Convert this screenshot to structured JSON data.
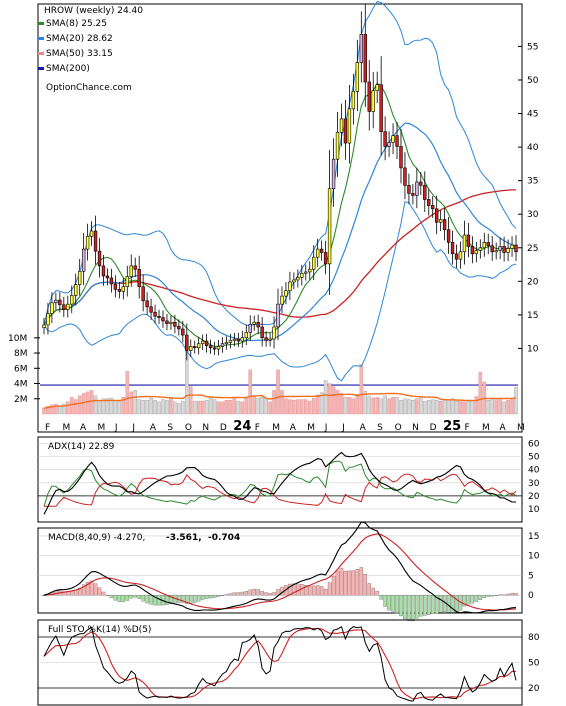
{
  "chart_data": {
    "type": "stock-chart",
    "symbol_line": "HROW (weekly) 24.40",
    "watermark": "OptionChance.com",
    "colors": {
      "sma8": "#2a8a2a",
      "sma20": "#2f86d6",
      "sma50": "#f08a8a",
      "sma200": "#1a1aaa",
      "up": "#ffff33",
      "down": "#cc2222",
      "up_alt": "#d8b4e8",
      "vol_up": "#f4b4b4",
      "vol_down": "#d8d8d8",
      "avgvol": "#f07020",
      "adx": "#000000",
      "plusdi": "#2a8a2a",
      "minusdi": "#cc2222",
      "macd": "#000000",
      "signal": "#cc2222",
      "hist_pos": "#f4b4b4",
      "hist_neg": "#a8e0a8",
      "stok": "#000000",
      "stod": "#cc2222"
    },
    "legend": [
      {
        "key": "sma8",
        "text": "SMA(8) 25.25"
      },
      {
        "key": "sma20",
        "text": "SMA(20) 28.62"
      },
      {
        "key": "sma50",
        "text": "SMA(50) 33.15"
      },
      {
        "key": "sma200",
        "text": "SMA(200)"
      }
    ],
    "x_labels": [
      "F",
      "M",
      "A",
      "M",
      "J",
      "J",
      "A",
      "S",
      "O",
      "N",
      "D",
      "24",
      "F",
      "M",
      "A",
      "M",
      "J",
      "J",
      "A",
      "S",
      "O",
      "N",
      "D",
      "25",
      "F",
      "M",
      "A",
      "M"
    ],
    "price_axis": {
      "ticks": [
        10,
        15,
        20,
        25,
        30,
        35,
        40,
        45,
        50,
        55
      ],
      "range": [
        0,
        60
      ]
    },
    "volume_axis": {
      "ticks": [
        "2M",
        "4M",
        "6M",
        "8M",
        "10M"
      ],
      "range": [
        0,
        11
      ]
    },
    "weeks": 120,
    "close": [
      13.5,
      15.2,
      16.8,
      17.2,
      16.5,
      15.8,
      16.6,
      17.9,
      19.5,
      21.5,
      24.8,
      26.7,
      27.5,
      24.5,
      22.3,
      20.8,
      20.5,
      19.6,
      18.8,
      18.5,
      19.2,
      20.7,
      22.3,
      21.8,
      19.2,
      17.1,
      16.2,
      15.4,
      14.8,
      14.6,
      14.1,
      13.7,
      13.9,
      13.3,
      12.9,
      12.0,
      9.7,
      10.3,
      10.1,
      10.7,
      11.1,
      10.4,
      10.1,
      9.9,
      10.3,
      10.7,
      10.9,
      11.2,
      11.4,
      11.1,
      11.6,
      12.4,
      13.6,
      13.9,
      13.2,
      11.6,
      11.2,
      11.4,
      13.2,
      16.6,
      17.8,
      18.6,
      19.9,
      20.2,
      20.6,
      21.2,
      21.4,
      21.8,
      23.6,
      24.8,
      24.3,
      22.6,
      33.8,
      38.2,
      42.2,
      44.2,
      40.6,
      45.7,
      48.3,
      52.6,
      56.8,
      49.7,
      45.3,
      48.4,
      49.3,
      42.3,
      40.1,
      40.7,
      41.7,
      40.1,
      36.9,
      34.3,
      33.1,
      32.8,
      34.8,
      34.3,
      32.2,
      31.3,
      30.8,
      28.8,
      29.2,
      27.7,
      25.8,
      24.1,
      23.3,
      24.4,
      26.9,
      25.2,
      24.1,
      24.6,
      25.0,
      25.8,
      25.3,
      24.4,
      24.6,
      25.2,
      24.3,
      24.9,
      25.4,
      24.4
    ],
    "volume": [
      0.8,
      1.0,
      1.2,
      1.3,
      1.1,
      1.3,
      1.6,
      2.2,
      1.9,
      2.4,
      2.7,
      2.9,
      3.1,
      2.4,
      1.8,
      2.0,
      2.0,
      2.1,
      1.8,
      1.7,
      2.2,
      5.6,
      2.9,
      3.1,
      1.9,
      1.8,
      1.8,
      2.1,
      1.8,
      1.6,
      1.9,
      1.8,
      2.2,
      1.6,
      1.4,
      1.7,
      9.8,
      3.6,
      1.7,
      1.7,
      1.7,
      1.8,
      2.1,
      1.9,
      1.6,
      1.6,
      1.8,
      1.8,
      2.2,
      1.7,
      1.6,
      2.2,
      5.8,
      2.3,
      2.1,
      2.2,
      2.1,
      1.6,
      3.1,
      5.8,
      3.1,
      2.0,
      1.9,
      1.8,
      1.9,
      1.9,
      1.9,
      1.7,
      2.1,
      2.5,
      2.8,
      4.4,
      4.0,
      3.6,
      3.1,
      2.7,
      2.2,
      2.2,
      2.0,
      2.6,
      6.5,
      3.0,
      2.3,
      2.1,
      2.2,
      2.0,
      2.4,
      2.0,
      2.2,
      2.2,
      1.8,
      2.0,
      1.9,
      1.8,
      2.0,
      2.1,
      1.7,
      1.8,
      1.9,
      1.8,
      1.7,
      1.8,
      1.9,
      2.0,
      1.7,
      1.8,
      1.6,
      1.6,
      1.8,
      2.3,
      5.5,
      4.2,
      1.8,
      2.1,
      1.9,
      2.1,
      1.6,
      1.8,
      2.0,
      3.5
    ],
    "adx_panel": {
      "label": "ADX(14) 22.89",
      "ticks": [
        10,
        20,
        30,
        40,
        50,
        60
      ],
      "range": [
        0,
        65
      ]
    },
    "macd_panel": {
      "label": "MACD(8,40,9) -4.270,",
      "value2": "-3.561,",
      "value3": "-0.704",
      "ticks": [
        0,
        5,
        10,
        15
      ],
      "range": [
        -4.5,
        17
      ]
    },
    "sto_panel": {
      "label": "Full STO %K(14) %D(5)",
      "ticks": [
        20,
        50,
        80
      ],
      "range": [
        0,
        100
      ]
    }
  }
}
